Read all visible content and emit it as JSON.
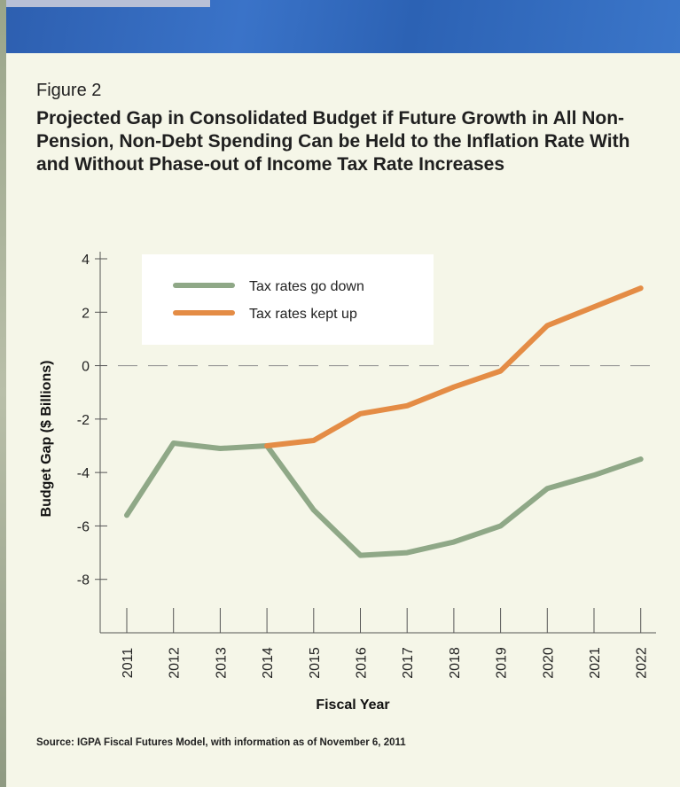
{
  "figure": {
    "label": "Figure 2",
    "title": "Projected Gap in Consolidated Budget if Future Growth in All Non-Pension, Non-Debt Spending Can be Held to the Inflation Rate With and  Without Phase-out of Income Tax Rate Increases",
    "source": "Source: IGPA Fiscal Futures Model, with information as of November 6, 2011"
  },
  "colors": {
    "banner": "#3a70c4",
    "panel": "#f5f6e8",
    "tax_down": "#8fa887",
    "tax_up": "#e48c45"
  },
  "chart_data": {
    "type": "line",
    "xlabel": "Fiscal Year",
    "ylabel": "Budget Gap ($ Billions)",
    "ylim": [
      -10,
      4
    ],
    "yticks": [
      4,
      2,
      0,
      -2,
      -4,
      -6,
      -8
    ],
    "ytick_labels": [
      "4",
      "2",
      "0",
      "-2",
      "-4",
      "-6",
      "-8"
    ],
    "x": [
      "2011",
      "2012",
      "2013",
      "2014",
      "2015",
      "2016",
      "2017",
      "2018",
      "2019",
      "2020",
      "2021",
      "2022"
    ],
    "zero_line": "dashed",
    "legend_position": "top-center",
    "series": [
      {
        "name": "Tax rates go down",
        "color": "#8fa887",
        "points": [
          [
            "2011",
            -5.6
          ],
          [
            "2012",
            -2.9
          ],
          [
            "2013",
            -3.1
          ],
          [
            "2014",
            -3.0
          ],
          [
            "2015",
            -5.4
          ],
          [
            "2016",
            -7.1
          ],
          [
            "2017",
            -7.0
          ],
          [
            "2018",
            -6.6
          ],
          [
            "2019",
            -6.0
          ],
          [
            "2020",
            -4.6
          ],
          [
            "2021",
            -4.1
          ],
          [
            "2022",
            -3.5
          ]
        ]
      },
      {
        "name": "Tax rates kept up",
        "color": "#e48c45",
        "points": [
          [
            "2014",
            -3.0
          ],
          [
            "2015",
            -2.8
          ],
          [
            "2016",
            -1.8
          ],
          [
            "2017",
            -1.5
          ],
          [
            "2018",
            -0.8
          ],
          [
            "2019",
            -0.2
          ],
          [
            "2020",
            1.5
          ],
          [
            "2021",
            2.2
          ],
          [
            "2022",
            2.9
          ]
        ]
      }
    ]
  }
}
